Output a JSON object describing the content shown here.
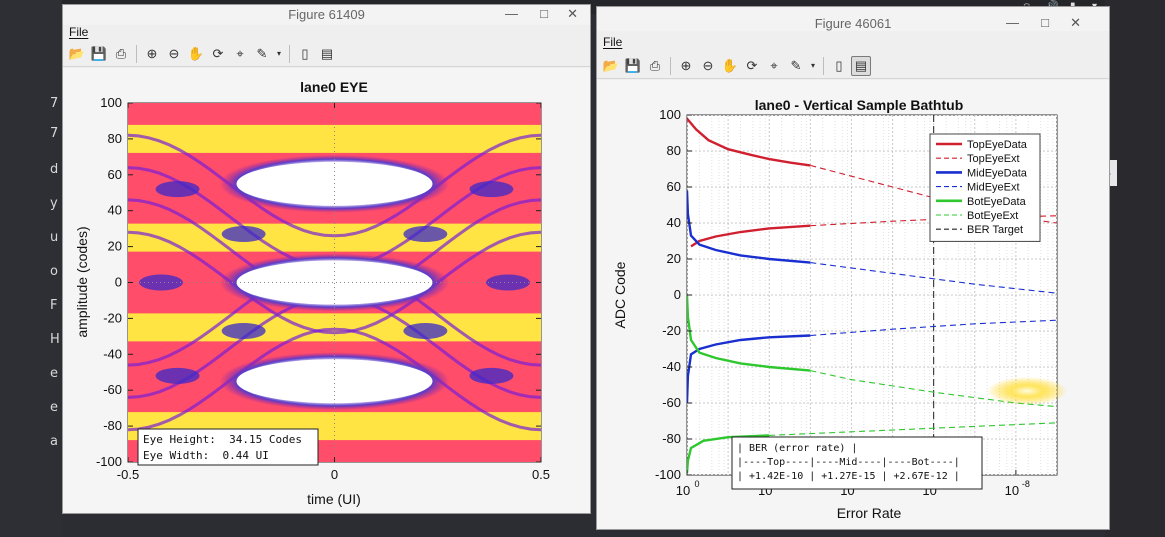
{
  "desktop": {
    "left_letters": [
      "7",
      "7",
      "d",
      "y",
      "u",
      "o",
      "F",
      "H",
      "e",
      "e",
      "a"
    ]
  },
  "left_window": {
    "title": "Figure 61409",
    "menu": {
      "file_label": "File"
    },
    "toolbar_icons": [
      "open-folder-icon",
      "save-icon",
      "print-icon",
      "zoom-in-icon",
      "zoom-out-icon",
      "pan-hand-icon",
      "rotate-icon",
      "data-cursor-icon",
      "brush-icon",
      "dropdown-arrow-icon",
      "hide-plot-tools-icon",
      "show-plot-tools-icon"
    ],
    "chart_data": {
      "type": "heatmap",
      "title": "lane0 EYE",
      "xlabel": "time (UI)",
      "ylabel": "amplitude (codes)",
      "xlim": [
        -0.5,
        0.5
      ],
      "ylim": [
        -100,
        100
      ],
      "x_ticks": [
        "-0.5",
        "0",
        "0.5"
      ],
      "y_ticks": [
        "100",
        "80",
        "60",
        "40",
        "20",
        "0",
        "-20",
        "-40",
        "-60",
        "-80",
        "-100"
      ],
      "eye_centers": [
        {
          "x": 0,
          "y": 55
        },
        {
          "x": 0,
          "y": 0
        },
        {
          "x": 0,
          "y": -55
        }
      ],
      "annotation": [
        "Eye Height:  34.15 Codes",
        "Eye Width:  0.44 UI"
      ]
    }
  },
  "right_window": {
    "title": "Figure 46061",
    "menu": {
      "file_label": "File"
    },
    "toolbar_icons": [
      "open-folder-icon",
      "save-icon",
      "print-icon",
      "zoom-in-icon",
      "zoom-out-icon",
      "pan-hand-icon",
      "rotate-icon",
      "data-cursor-icon",
      "brush-icon",
      "dropdown-arrow-icon",
      "hide-plot-tools-icon",
      "show-plot-tools-icon"
    ],
    "chart_data": {
      "type": "line",
      "title": "lane0 - Vertical Sample Bathtub",
      "xlabel": "Error Rate",
      "ylabel": "ADC Code",
      "x_scale": "log-reversed",
      "xlim": [
        1,
        1e-09
      ],
      "ylim": [
        -100,
        100
      ],
      "x_ticks": [
        {
          "value": 1,
          "base": "10",
          "exp": "0"
        },
        {
          "value": 0.01,
          "base": "10",
          "exp": "-2"
        },
        {
          "value": 0.0001,
          "base": "10",
          "exp": "-4"
        },
        {
          "value": 1e-06,
          "base": "10",
          "exp": "-6"
        },
        {
          "value": 1e-08,
          "base": "10",
          "exp": "-8"
        }
      ],
      "y_ticks": [
        "100",
        "80",
        "60",
        "40",
        "20",
        "0",
        "-20",
        "-40",
        "-60",
        "-80",
        "-100"
      ],
      "grid": true,
      "legend_position": "top-right",
      "ber_target": 1e-06,
      "series": [
        {
          "name": "TopEyeData",
          "color": "#d02030",
          "style": "solid",
          "points": [
            [
              1,
              98
            ],
            [
              0.6,
              92
            ],
            [
              0.3,
              86
            ],
            [
              0.1,
              81
            ],
            [
              0.03,
              78
            ],
            [
              0.01,
              75.5
            ],
            [
              0.003,
              73.5
            ],
            [
              0.001,
              72
            ]
          ]
        },
        {
          "name": "TopEyeExt",
          "color": "#d02030",
          "style": "dashed",
          "points": [
            [
              0.001,
              72
            ],
            [
              0.0001,
              66
            ],
            [
              1e-05,
              60
            ],
            [
              1e-06,
              54
            ],
            [
              1e-07,
              48
            ],
            [
              1e-08,
              43
            ],
            [
              1e-09,
              40
            ]
          ]
        },
        {
          "name": "",
          "color": "#d02030",
          "style": "solid",
          "points": [
            [
              0.8,
              27
            ],
            [
              0.5,
              30
            ],
            [
              0.2,
              32.5
            ],
            [
              0.05,
              35
            ],
            [
              0.01,
              37
            ],
            [
              0.001,
              38.5
            ]
          ]
        },
        {
          "name": "",
          "color": "#d02030",
          "style": "dashed",
          "points": [
            [
              0.001,
              38.5
            ],
            [
              1e-05,
              41
            ],
            [
              1e-07,
              43
            ],
            [
              1e-09,
              44
            ]
          ]
        },
        {
          "name": "MidEyeData",
          "color": "#1a2fd0",
          "style": "solid",
          "points": [
            [
              1,
              58
            ],
            [
              0.95,
              45
            ],
            [
              0.8,
              33
            ],
            [
              0.5,
              28
            ],
            [
              0.2,
              25
            ],
            [
              0.05,
              22
            ],
            [
              0.01,
              20
            ],
            [
              0.001,
              18
            ]
          ]
        },
        {
          "name": "MidEyeExt",
          "color": "#1a2fd0",
          "style": "dashed",
          "points": [
            [
              0.001,
              18
            ],
            [
              1e-05,
              12
            ],
            [
              1e-07,
              6
            ],
            [
              1e-09,
              1
            ]
          ]
        },
        {
          "name": "",
          "color": "#1a2fd0",
          "style": "solid",
          "points": [
            [
              1,
              -60
            ],
            [
              0.95,
              -45
            ],
            [
              0.8,
              -33
            ],
            [
              0.5,
              -30
            ],
            [
              0.2,
              -27.5
            ],
            [
              0.05,
              -25
            ],
            [
              0.01,
              -23.5
            ],
            [
              0.001,
              -22.5
            ]
          ]
        },
        {
          "name": "",
          "color": "#1a2fd0",
          "style": "dashed",
          "points": [
            [
              0.001,
              -22.5
            ],
            [
              1e-05,
              -19
            ],
            [
              1e-07,
              -16
            ],
            [
              1e-09,
              -14
            ]
          ]
        },
        {
          "name": "BotEyeData",
          "color": "#2ec82e",
          "style": "solid",
          "points": [
            [
              1,
              0
            ],
            [
              0.95,
              -12
            ],
            [
              0.8,
              -25
            ],
            [
              0.5,
              -32
            ],
            [
              0.2,
              -35
            ],
            [
              0.05,
              -38
            ],
            [
              0.01,
              -40
            ],
            [
              0.001,
              -42
            ]
          ]
        },
        {
          "name": "BotEyeExt",
          "color": "#2ec82e",
          "style": "dashed",
          "points": [
            [
              0.001,
              -42
            ],
            [
              0.0001,
              -47
            ],
            [
              1e-06,
              -54
            ],
            [
              1e-08,
              -60
            ],
            [
              1e-09,
              -62
            ]
          ]
        },
        {
          "name": "",
          "color": "#2ec82e",
          "style": "solid",
          "points": [
            [
              1,
              -99
            ],
            [
              0.95,
              -92
            ],
            [
              0.8,
              -85
            ],
            [
              0.4,
              -81
            ],
            [
              0.1,
              -79
            ],
            [
              0.01,
              -78
            ]
          ]
        },
        {
          "name": "",
          "color": "#2ec82e",
          "style": "dashed",
          "points": [
            [
              0.01,
              -78
            ],
            [
              0.0001,
              -76
            ],
            [
              1e-06,
              -74
            ],
            [
              1e-08,
              -72
            ],
            [
              1e-09,
              -71
            ]
          ]
        },
        {
          "name": "BER Target",
          "color": "#222222",
          "style": "dashed",
          "points": []
        }
      ],
      "ber_table": [
        "| BER (error rate) |",
        "|----Top----|----Mid----|----Bot----|",
        "| +1.42E-10 | +1.27E-15 | +2.67E-12 |"
      ]
    }
  }
}
